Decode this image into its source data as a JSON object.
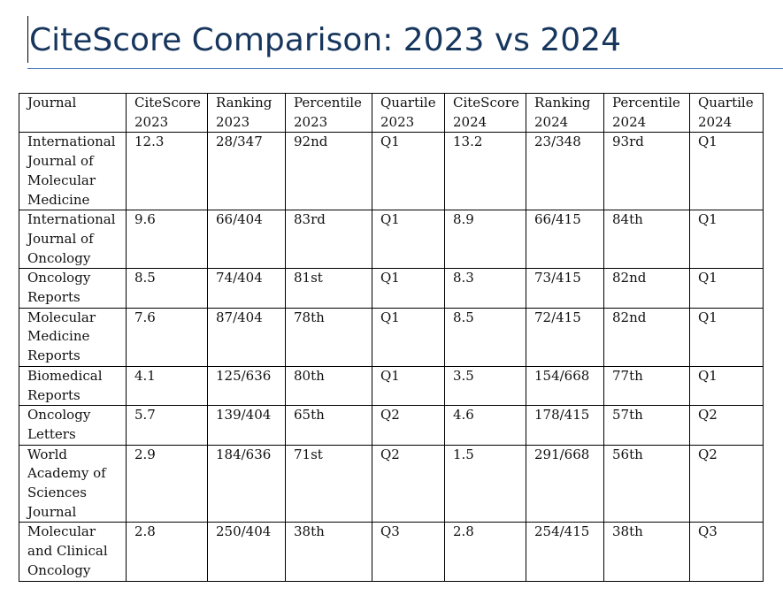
{
  "document": {
    "title": "CiteScore Comparison: 2023 vs 2024"
  },
  "table": {
    "headers": [
      "Journal",
      "CiteScore 2023",
      "Ranking 2023",
      "Percentile 2023",
      "Quartile 2023",
      "CiteScore 2024",
      "Ranking 2024",
      "Percentile 2024",
      "Quartile 2024"
    ],
    "rows": [
      [
        "International Journal of Molecular Medicine",
        "12.3",
        "28/347",
        "92nd",
        "Q1",
        "13.2",
        "23/348",
        "93rd",
        "Q1"
      ],
      [
        "International Journal of Oncology",
        "9.6",
        "66/404",
        "83rd",
        "Q1",
        "8.9",
        "66/415",
        "84th",
        "Q1"
      ],
      [
        "Oncology Reports",
        "8.5",
        "74/404",
        "81st",
        "Q1",
        "8.3",
        "73/415",
        "82nd",
        "Q1"
      ],
      [
        "Molecular Medicine Reports",
        "7.6",
        "87/404",
        "78th",
        "Q1",
        "8.5",
        "72/415",
        "82nd",
        "Q1"
      ],
      [
        "Biomedical Reports",
        "4.1",
        "125/636",
        "80th",
        "Q1",
        "3.5",
        "154/668",
        "77th",
        "Q1"
      ],
      [
        "Oncology Letters",
        "5.7",
        "139/404",
        "65th",
        "Q2",
        "4.6",
        "178/415",
        "57th",
        "Q2"
      ],
      [
        "World Academy of Sciences Journal",
        "2.9",
        "184/636",
        "71st",
        "Q2",
        "1.5",
        "291/668",
        "56th",
        "Q2"
      ],
      [
        "Molecular and Clinical Oncology",
        "2.8",
        "250/404",
        "38th",
        "Q3",
        "2.8",
        "254/415",
        "38th",
        "Q3"
      ]
    ]
  },
  "colors": {
    "title": "#17365d",
    "title_rule": "#4f81bd",
    "border": "#000000"
  }
}
